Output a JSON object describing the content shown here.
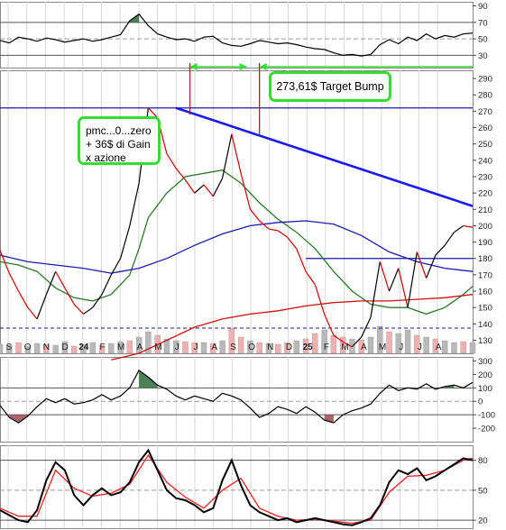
{
  "annotations": {
    "target_bump": "273,61$ Target Bump",
    "pmc_lines": [
      "pmc...0...zero",
      "+ 36$ di Gain",
      "x azione"
    ]
  },
  "colors": {
    "price": "#000000",
    "price_down": "#cc0000",
    "trendline": "#1a1aee",
    "ma_short": "#2a7a2a",
    "ma_mid": "#1a1aaa",
    "ma_long": "#cc1111",
    "highlight": "#33dd33",
    "volume_up": "#b8b8b8",
    "volume_down": "#f0b0b0",
    "overbought_fill": "#2f6a3a",
    "oversold_fill": "#9a4a50",
    "signal": "#ee2222",
    "grid": "#d8d8d8"
  },
  "chart_data": [
    {
      "type": "line",
      "panel": "rsi",
      "ylim": [
        15,
        95
      ],
      "yticks": [
        90,
        70,
        50,
        30
      ],
      "reference_lines": [
        70,
        30
      ],
      "x": [
        0,
        4,
        8,
        12,
        16,
        20,
        24,
        28,
        32,
        36,
        40,
        44,
        48,
        52,
        56,
        60,
        64,
        68,
        72,
        76,
        80,
        84,
        88,
        92,
        96,
        100,
        104,
        108,
        112,
        116,
        120,
        124,
        128,
        132,
        136,
        140,
        144,
        148,
        152,
        156,
        160,
        164,
        168,
        172,
        176,
        180,
        184,
        188,
        192,
        196,
        200,
        204
      ],
      "values": [
        48,
        45,
        52,
        50,
        47,
        51,
        49,
        46,
        48,
        50,
        47,
        49,
        52,
        55,
        72,
        80,
        66,
        56,
        52,
        49,
        50,
        47,
        52,
        53,
        45,
        42,
        41,
        44,
        48,
        46,
        44,
        45,
        43,
        40,
        38,
        37,
        33,
        30,
        31,
        29,
        31,
        43,
        49,
        44,
        52,
        48,
        56,
        50,
        54,
        52,
        56,
        57
      ]
    },
    {
      "type": "line",
      "panel": "price",
      "ylim": [
        122,
        295
      ],
      "yticks": [
        290,
        280,
        270,
        260,
        250,
        240,
        230,
        220,
        210,
        200,
        190,
        180,
        170,
        160,
        150,
        140,
        130
      ],
      "x_ticks": [
        "S",
        "O",
        "N",
        "D",
        "24",
        "F",
        "M",
        "A",
        "M",
        "J",
        "J",
        "A",
        "S",
        "O",
        "N",
        "D",
        "25",
        "F",
        "M",
        "A",
        "M",
        "J",
        "J",
        "A"
      ],
      "x": [
        0,
        4,
        8,
        12,
        16,
        20,
        24,
        28,
        32,
        36,
        40,
        44,
        48,
        52,
        56,
        60,
        64,
        68,
        72,
        76,
        80,
        84,
        88,
        92,
        96,
        100,
        104,
        108,
        112,
        116,
        120,
        124,
        128,
        132,
        136,
        140,
        144,
        148,
        152,
        156,
        160,
        164,
        168,
        172,
        176,
        180,
        184,
        188,
        192,
        196,
        200,
        204
      ],
      "values": [
        185,
        171,
        160,
        150,
        143,
        158,
        172,
        162,
        152,
        146,
        150,
        158,
        170,
        180,
        200,
        226,
        272,
        266,
        244,
        235,
        228,
        220,
        225,
        218,
        229,
        256,
        232,
        210,
        203,
        198,
        197,
        193,
        186,
        172,
        164,
        146,
        133,
        129,
        126,
        132,
        144,
        178,
        160,
        174,
        150,
        184,
        168,
        182,
        188,
        196,
        200,
        199
      ],
      "series": [
        {
          "name": "ma_short",
          "x": [
            0,
            8,
            16,
            24,
            32,
            40,
            48,
            56,
            60,
            64,
            72,
            80,
            88,
            96,
            104,
            112,
            120,
            128,
            136,
            144,
            152,
            160,
            168,
            176,
            184,
            192,
            200,
            204
          ],
          "values": [
            178,
            176,
            172,
            162,
            156,
            154,
            158,
            170,
            186,
            205,
            220,
            230,
            232,
            234,
            226,
            214,
            204,
            196,
            186,
            172,
            160,
            152,
            150,
            150,
            146,
            150,
            158,
            163
          ]
        },
        {
          "name": "ma_mid",
          "x": [
            0,
            12,
            24,
            36,
            48,
            60,
            72,
            84,
            96,
            108,
            120,
            132,
            144,
            156,
            168,
            180,
            192,
            204
          ],
          "values": [
            182,
            178,
            176,
            174,
            171,
            174,
            180,
            188,
            195,
            200,
            202,
            203,
            201,
            194,
            184,
            178,
            174,
            172
          ]
        },
        {
          "name": "ma_long",
          "x": [
            48,
            60,
            72,
            84,
            96,
            108,
            120,
            132,
            144,
            156,
            168,
            180,
            192,
            204
          ],
          "values": [
            118,
            122,
            130,
            138,
            143,
            146,
            148,
            151,
            153,
            154,
            154,
            155,
            156,
            158
          ]
        }
      ],
      "trendline": {
        "x": [
          0,
          204
        ],
        "values": [
          272,
          212
        ]
      },
      "horizontal_lines": [
        272,
        180
      ],
      "target_value": 273.61,
      "volume_up": [
        1,
        1,
        0,
        1,
        1,
        0,
        1,
        1,
        0,
        1,
        1,
        0,
        1,
        1,
        0,
        1,
        1,
        0,
        1,
        1,
        0,
        0,
        1,
        0,
        1,
        0,
        0,
        1,
        0,
        1,
        0,
        0,
        1,
        0,
        0,
        1,
        0,
        0,
        1,
        0,
        1,
        1,
        0,
        1,
        1,
        0,
        1,
        0,
        1,
        1,
        0,
        1
      ],
      "volume": [
        10,
        9,
        12,
        8,
        11,
        10,
        9,
        13,
        8,
        10,
        12,
        9,
        11,
        13,
        14,
        18,
        24,
        20,
        16,
        14,
        13,
        12,
        12,
        11,
        14,
        28,
        18,
        14,
        12,
        11,
        10,
        12,
        14,
        16,
        22,
        26,
        20,
        18,
        16,
        15,
        18,
        30,
        24,
        22,
        26,
        20,
        18,
        16,
        14,
        12,
        13,
        12
      ]
    },
    {
      "type": "line",
      "panel": "oscillator",
      "ylim": [
        -300,
        330
      ],
      "yticks": [
        300,
        200,
        100,
        0,
        -100,
        -200
      ],
      "reference_lines": [
        100,
        -100
      ],
      "x": [
        0,
        4,
        8,
        12,
        16,
        20,
        24,
        28,
        32,
        36,
        40,
        44,
        48,
        52,
        56,
        60,
        64,
        68,
        72,
        76,
        80,
        84,
        88,
        92,
        96,
        100,
        104,
        108,
        112,
        116,
        120,
        124,
        128,
        132,
        136,
        140,
        144,
        148,
        152,
        156,
        160,
        164,
        168,
        172,
        176,
        180,
        184,
        188,
        192,
        196,
        200,
        204
      ],
      "values": [
        -30,
        -120,
        -160,
        -110,
        -40,
        20,
        -10,
        20,
        -20,
        -10,
        10,
        50,
        10,
        40,
        100,
        230,
        180,
        120,
        90,
        40,
        10,
        40,
        20,
        0,
        60,
        40,
        10,
        -50,
        -120,
        -90,
        -40,
        -60,
        -90,
        -40,
        -80,
        -140,
        -160,
        -100,
        -70,
        -50,
        -20,
        60,
        120,
        80,
        100,
        90,
        130,
        90,
        110,
        120,
        100,
        140
      ]
    },
    {
      "type": "line",
      "panel": "stochastic",
      "ylim": [
        12,
        95
      ],
      "yticks": [
        80,
        50,
        20
      ],
      "reference_lines": [
        80,
        50,
        20
      ],
      "x": [
        0,
        4,
        8,
        12,
        16,
        20,
        24,
        28,
        32,
        36,
        40,
        44,
        48,
        52,
        56,
        60,
        64,
        68,
        72,
        76,
        80,
        84,
        88,
        92,
        96,
        100,
        104,
        108,
        112,
        116,
        120,
        124,
        128,
        132,
        136,
        140,
        144,
        148,
        152,
        156,
        160,
        164,
        168,
        172,
        176,
        180,
        184,
        188,
        192,
        196,
        200,
        204
      ],
      "values": [
        30,
        25,
        20,
        18,
        30,
        60,
        78,
        70,
        45,
        35,
        45,
        52,
        45,
        48,
        58,
        78,
        90,
        70,
        50,
        42,
        40,
        35,
        28,
        32,
        60,
        80,
        55,
        35,
        28,
        24,
        20,
        22,
        18,
        20,
        22,
        20,
        18,
        16,
        15,
        18,
        22,
        35,
        58,
        70,
        66,
        72,
        60,
        64,
        70,
        76,
        82,
        80
      ],
      "series": [
        {
          "name": "signal",
          "x": [
            0,
            8,
            16,
            24,
            32,
            40,
            48,
            56,
            64,
            72,
            80,
            88,
            96,
            104,
            112,
            120,
            128,
            136,
            144,
            152,
            160,
            168,
            176,
            184,
            192,
            200,
            204
          ],
          "values": [
            32,
            24,
            24,
            70,
            52,
            44,
            47,
            56,
            85,
            58,
            43,
            32,
            50,
            62,
            32,
            24,
            20,
            21,
            19,
            17,
            20,
            48,
            64,
            65,
            70,
            80,
            82
          ]
        }
      ]
    }
  ]
}
